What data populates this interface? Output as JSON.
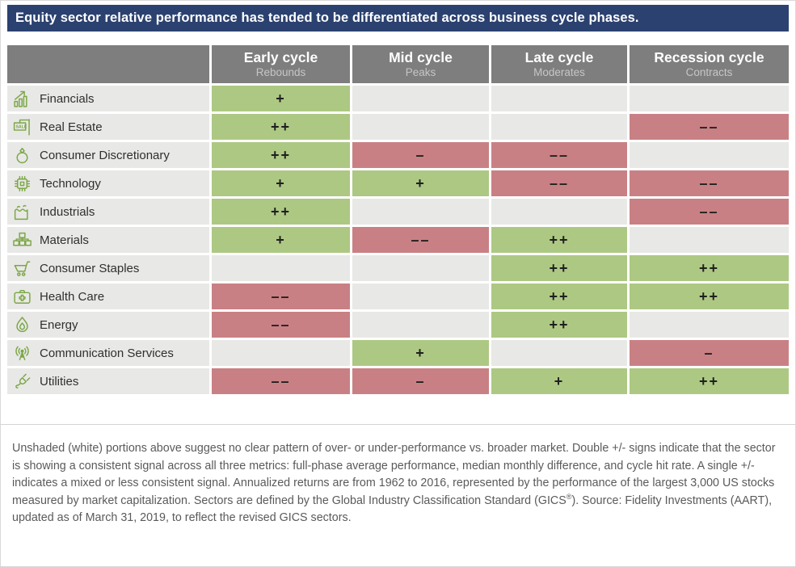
{
  "colors": {
    "title_bar_bg": "#2b4170",
    "header_bg": "#7e7e7e",
    "header_sublabel": "#c6c6c6",
    "row_bg": "#e8e8e6",
    "positive_bg": "#adc883",
    "negative_bg": "#c98084",
    "icon_green": "#7ba646",
    "sign_text": "#1f1f1f",
    "footnote_text": "#5a5a5a"
  },
  "title_bar": {
    "text": "Equity sector relative performance has tended to be differentiated across business cycle phases."
  },
  "table": {
    "columns": [
      {
        "label": "Early cycle",
        "sublabel": "Rebounds"
      },
      {
        "label": "Mid cycle",
        "sublabel": "Peaks"
      },
      {
        "label": "Late cycle",
        "sublabel": "Moderates"
      },
      {
        "label": "Recession cycle",
        "sublabel": "Contracts"
      }
    ],
    "rows": [
      {
        "icon": "growth-chart-icon",
        "sector": "Financials",
        "signals": [
          "+",
          "",
          "",
          ""
        ]
      },
      {
        "icon": "sale-sign-icon",
        "sector": "Real Estate",
        "signals": [
          "++",
          "",
          "",
          "--"
        ]
      },
      {
        "icon": "ring-icon",
        "sector": "Consumer Discretionary",
        "signals": [
          "++",
          "-",
          "--",
          ""
        ]
      },
      {
        "icon": "chip-icon",
        "sector": "Technology",
        "signals": [
          "+",
          "+",
          "--",
          "--"
        ]
      },
      {
        "icon": "factory-icon",
        "sector": "Industrials",
        "signals": [
          "++",
          "",
          "",
          "--"
        ]
      },
      {
        "icon": "crates-icon",
        "sector": "Materials",
        "signals": [
          "+",
          "--",
          "++",
          ""
        ]
      },
      {
        "icon": "shopping-cart-icon",
        "sector": "Consumer Staples",
        "signals": [
          "",
          "",
          "++",
          "++"
        ]
      },
      {
        "icon": "first-aid-kit-icon",
        "sector": "Health Care",
        "signals": [
          "--",
          "",
          "++",
          "++"
        ]
      },
      {
        "icon": "droplet-icon",
        "sector": "Energy",
        "signals": [
          "--",
          "",
          "++",
          ""
        ]
      },
      {
        "icon": "broadcast-antenna-icon",
        "sector": "Communication Services",
        "signals": [
          "",
          "+",
          "",
          "-"
        ]
      },
      {
        "icon": "power-plug-icon",
        "sector": "Utilities",
        "signals": [
          "--",
          "-",
          "+",
          "++"
        ]
      }
    ]
  },
  "footnote": {
    "part1": "Unshaded (white) portions above suggest no clear pattern of over- or under-performance vs. broader market. Double +/- signs indicate that the sector is showing a consistent signal across all three metrics: full-phase average performance, median monthly difference, and cycle hit rate. A single +/- indicates a mixed or less consistent signal. Annualized returns are from 1962 to 2016, represented by the performance of the largest 3,000 US stocks measured by market capitalization. Sectors are defined by the Global Industry Classification Standard (GICS",
    "sup": "®",
    "part2": "). Source: Fidelity Investments (AART), updated as of March 31, 2019, to reflect the revised GICS sectors."
  },
  "chart_data": {
    "type": "heatmap",
    "title": "Equity sector relative performance has tended to be differentiated across business cycle phases.",
    "columns": [
      "Early cycle (Rebounds)",
      "Mid cycle (Peaks)",
      "Late cycle (Moderates)",
      "Recession cycle (Contracts)"
    ],
    "rows": [
      "Financials",
      "Real Estate",
      "Consumer Discretionary",
      "Technology",
      "Industrials",
      "Materials",
      "Consumer Staples",
      "Health Care",
      "Energy",
      "Communication Services",
      "Utilities"
    ],
    "values": [
      [
        "+",
        "",
        "",
        ""
      ],
      [
        "++",
        "",
        "",
        "--"
      ],
      [
        "++",
        "-",
        "--",
        ""
      ],
      [
        "+",
        "+",
        "--",
        "--"
      ],
      [
        "++",
        "",
        "",
        "--"
      ],
      [
        "+",
        "--",
        "++",
        ""
      ],
      [
        "",
        "",
        "++",
        "++"
      ],
      [
        "--",
        "",
        "++",
        "++"
      ],
      [
        "--",
        "",
        "++",
        ""
      ],
      [
        "",
        "+",
        "",
        "-"
      ],
      [
        "--",
        "-",
        "+",
        "++"
      ]
    ],
    "value_legend": {
      "+": "mixed/less consistent over-performance (green)",
      "++": "consistent over-performance across all three metrics (green)",
      "-": "mixed/less consistent under-performance (red)",
      "--": "consistent under-performance across all three metrics (red)",
      "": "no clear pattern vs. broader market (unshaded)"
    },
    "legend_position": "none",
    "grid": false
  }
}
